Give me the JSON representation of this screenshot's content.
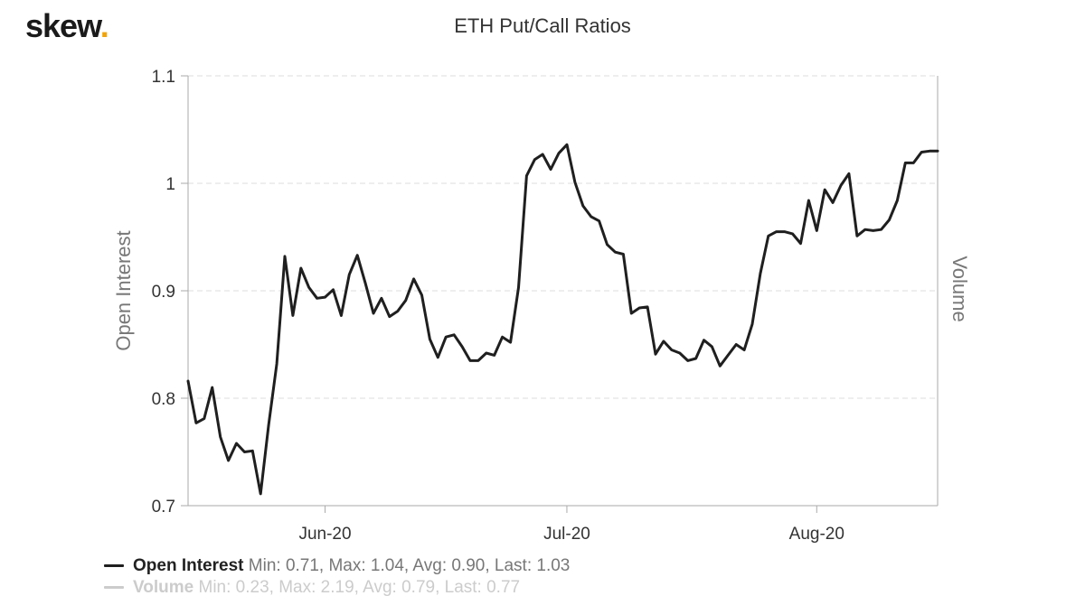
{
  "header": {
    "logo_text": "skew",
    "logo_dot": ".",
    "title": "ETH Put/Call Ratios"
  },
  "colors": {
    "series_line": "#1f1f1f",
    "volume_line": "#cccccc",
    "grid": "#dddddd",
    "axis": "#aaaaaa",
    "logo_dot": "#f0a30a"
  },
  "legend": [
    {
      "name": "Open Interest",
      "stats": "Min: 0.71, Max: 1.04, Avg: 0.90, Last: 1.03"
    },
    {
      "name": "Volume",
      "stats": "Min: 0.23, Max: 2.19, Avg: 0.79, Last: 0.77"
    }
  ],
  "chart_data": {
    "type": "line",
    "title": "ETH Put/Call Ratios",
    "ylabel": "Open Interest",
    "y2label": "Volume",
    "ylim": [
      0.7,
      1.1
    ],
    "yticks": [
      0.7,
      0.8,
      0.9,
      1,
      1.1
    ],
    "ytick_labels": [
      "0.7",
      "0.8",
      "0.9",
      "1",
      "1.1"
    ],
    "xlim": [
      "2020-05-15",
      "2020-08-16"
    ],
    "xticks": [
      "2020-06-01",
      "2020-07-01",
      "2020-08-01"
    ],
    "xtick_labels": [
      "Jun-20",
      "Jul-20",
      "Aug-20"
    ],
    "grid": true,
    "legend_position": "bottom-left",
    "series": [
      {
        "name": "Open Interest",
        "x": [
          "2020-05-15",
          "2020-05-16",
          "2020-05-17",
          "2020-05-18",
          "2020-05-19",
          "2020-05-20",
          "2020-05-21",
          "2020-05-22",
          "2020-05-23",
          "2020-05-24",
          "2020-05-25",
          "2020-05-26",
          "2020-05-27",
          "2020-05-28",
          "2020-05-29",
          "2020-05-30",
          "2020-05-31",
          "2020-06-01",
          "2020-06-02",
          "2020-06-03",
          "2020-06-04",
          "2020-06-05",
          "2020-06-06",
          "2020-06-07",
          "2020-06-08",
          "2020-06-09",
          "2020-06-10",
          "2020-06-11",
          "2020-06-12",
          "2020-06-13",
          "2020-06-14",
          "2020-06-15",
          "2020-06-16",
          "2020-06-17",
          "2020-06-18",
          "2020-06-19",
          "2020-06-20",
          "2020-06-21",
          "2020-06-22",
          "2020-06-23",
          "2020-06-24",
          "2020-06-25",
          "2020-06-26",
          "2020-06-27",
          "2020-06-28",
          "2020-06-29",
          "2020-06-30",
          "2020-07-01",
          "2020-07-02",
          "2020-07-03",
          "2020-07-04",
          "2020-07-05",
          "2020-07-06",
          "2020-07-07",
          "2020-07-08",
          "2020-07-09",
          "2020-07-10",
          "2020-07-11",
          "2020-07-12",
          "2020-07-13",
          "2020-07-14",
          "2020-07-15",
          "2020-07-16",
          "2020-07-17",
          "2020-07-18",
          "2020-07-19",
          "2020-07-20",
          "2020-07-21",
          "2020-07-22",
          "2020-07-23",
          "2020-07-24",
          "2020-07-25",
          "2020-07-26",
          "2020-07-27",
          "2020-07-28",
          "2020-07-29",
          "2020-07-30",
          "2020-07-31",
          "2020-08-01",
          "2020-08-02",
          "2020-08-03",
          "2020-08-04",
          "2020-08-05",
          "2020-08-06",
          "2020-08-07",
          "2020-08-08",
          "2020-08-09",
          "2020-08-10",
          "2020-08-11",
          "2020-08-12",
          "2020-08-13",
          "2020-08-14",
          "2020-08-15",
          "2020-08-16"
        ],
        "values": [
          0.816,
          0.777,
          0.781,
          0.81,
          0.764,
          0.742,
          0.758,
          0.75,
          0.751,
          0.711,
          0.775,
          0.832,
          0.932,
          0.877,
          0.921,
          0.903,
          0.893,
          0.894,
          0.901,
          0.877,
          0.915,
          0.933,
          0.907,
          0.879,
          0.893,
          0.876,
          0.881,
          0.891,
          0.911,
          0.896,
          0.855,
          0.838,
          0.857,
          0.859,
          0.848,
          0.835,
          0.835,
          0.842,
          0.84,
          0.857,
          0.852,
          0.903,
          1.007,
          1.022,
          1.027,
          1.013,
          1.028,
          1.036,
          1.001,
          0.979,
          0.969,
          0.965,
          0.943,
          0.936,
          0.934,
          0.879,
          0.884,
          0.885,
          0.841,
          0.853,
          0.845,
          0.842,
          0.835,
          0.837,
          0.854,
          0.848,
          0.83,
          0.84,
          0.85,
          0.845,
          0.869,
          0.916,
          0.951,
          0.955,
          0.955,
          0.953,
          0.944,
          0.984,
          0.956,
          0.994,
          0.982,
          0.998,
          1.009,
          0.951,
          0.957,
          0.956,
          0.957,
          0.966,
          0.984,
          1.019,
          1.019,
          1.029,
          1.03,
          1.03
        ]
      }
    ]
  }
}
